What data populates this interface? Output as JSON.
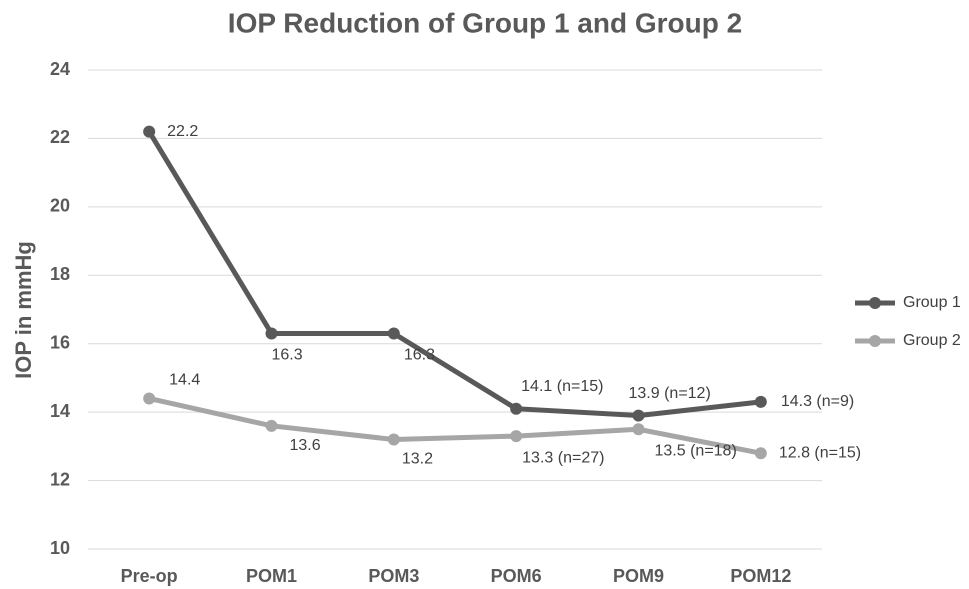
{
  "chart_data": {
    "type": "line",
    "title": "IOP Reduction of Group 1 and Group 2",
    "y_label": "IOP in mmHg",
    "categories": [
      "Pre-op",
      "POM1",
      "POM3",
      "POM6",
      "POM9",
      "POM12"
    ],
    "series": [
      {
        "name": "Group 1",
        "color": "#595959",
        "values": [
          22.2,
          16.3,
          16.3,
          14.1,
          13.9,
          14.3
        ],
        "value_labels": [
          "22.2",
          "16.3",
          "16.3",
          "14.1 (n=15)",
          "13.9 (n=12)",
          "14.3 (n=9)"
        ]
      },
      {
        "name": "Group 2",
        "color": "#a6a6a6",
        "values": [
          14.4,
          13.6,
          13.2,
          13.3,
          13.5,
          12.8
        ],
        "value_labels": [
          "14.4",
          "13.6",
          "13.2",
          "13.3 (n=27)",
          "13.5 (n=18)",
          "12.8 (n=15)"
        ]
      }
    ],
    "ylim": [
      10,
      24
    ],
    "yticks": [
      10,
      12,
      14,
      16,
      18,
      20,
      22,
      24
    ],
    "grid": true,
    "legend": "right"
  }
}
